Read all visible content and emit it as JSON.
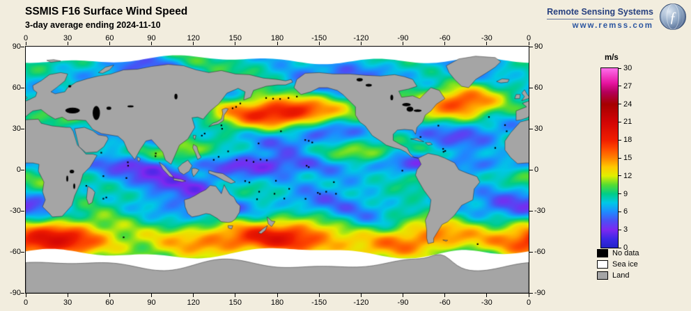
{
  "header": {
    "title": "SSMIS F16 Surface Wind Speed",
    "subtitle": "3-day average ending 2024-11-10"
  },
  "branding": {
    "name": "Remote Sensing Systems",
    "url": "www.remss.com"
  },
  "axes": {
    "lon_ticks": [
      "0",
      "30",
      "60",
      "90",
      "120",
      "150",
      "180",
      "-150",
      "-120",
      "-90",
      "-60",
      "-30",
      "0"
    ],
    "lat_ticks": [
      "90",
      "60",
      "30",
      "0",
      "-30",
      "-60",
      "-90"
    ]
  },
  "colorbar": {
    "label": "m/s",
    "min": 0,
    "max": 30,
    "ticks": [
      "30",
      "27",
      "24",
      "21",
      "18",
      "15",
      "12",
      "9",
      "6",
      "3",
      "0"
    ],
    "stops": [
      {
        "v": 0,
        "c": "#2323c8"
      },
      {
        "v": 1.5,
        "c": "#3c28e6"
      },
      {
        "v": 3,
        "c": "#7d28f0"
      },
      {
        "v": 4.5,
        "c": "#4b50f5"
      },
      {
        "v": 6,
        "c": "#1e8cff"
      },
      {
        "v": 7.5,
        "c": "#00c8e6"
      },
      {
        "v": 9,
        "c": "#00cd87"
      },
      {
        "v": 10.5,
        "c": "#55dc32"
      },
      {
        "v": 12,
        "c": "#e1ef00"
      },
      {
        "v": 13.5,
        "c": "#ffc800"
      },
      {
        "v": 15,
        "c": "#ff8200"
      },
      {
        "v": 16.5,
        "c": "#ff4b00"
      },
      {
        "v": 18,
        "c": "#f01e00"
      },
      {
        "v": 21,
        "c": "#d20505"
      },
      {
        "v": 24,
        "c": "#a50000"
      },
      {
        "v": 26,
        "c": "#b4005a"
      },
      {
        "v": 27.5,
        "c": "#e614a0"
      },
      {
        "v": 30,
        "c": "#ff6eeb"
      }
    ]
  },
  "legend": {
    "items": [
      {
        "label": "No data",
        "color": "#000000"
      },
      {
        "label": "Sea ice",
        "color": "#ffffff"
      },
      {
        "label": "Land",
        "color": "#a5a5a5"
      }
    ]
  },
  "colors": {
    "background": "#f2edde",
    "land": "#a5a5a5",
    "sea_ice": "#ffffff",
    "no_data": "#000000",
    "brand_text": "#27407f",
    "brand_url": "#2c56a0"
  },
  "chart_data": {
    "type": "heatmap",
    "title": "SSMIS F16 Surface Wind Speed",
    "subtitle": "3-day average ending 2024-11-10",
    "variable": "ocean surface wind speed",
    "units": "m/s",
    "projection": "equirectangular world map, longitude 0 at left edge increasing eastward through 180 (center) back to 0 at right edge; latitude 90 (top) to -90 (bottom)",
    "x": {
      "label": "longitude",
      "range_deg": [
        0,
        360
      ],
      "tick_labels": [
        "0",
        "30",
        "60",
        "90",
        "120",
        "150",
        "180",
        "-150",
        "-120",
        "-90",
        "-60",
        "-30",
        "0"
      ]
    },
    "y": {
      "label": "latitude",
      "range_deg": [
        90,
        -90
      ],
      "tick_labels": [
        "90",
        "60",
        "30",
        "0",
        "-30",
        "-60",
        "-90"
      ]
    },
    "colorbar": {
      "label": "m/s",
      "range": [
        0,
        30
      ],
      "ticks": [
        0,
        3,
        6,
        9,
        12,
        15,
        18,
        21,
        24,
        27,
        30
      ],
      "scale_colors_bottom_to_top": [
        "blue",
        "violet",
        "blue",
        "cyan",
        "green",
        "yellow",
        "orange",
        "red",
        "dark red",
        "magenta",
        "pink"
      ]
    },
    "classes": [
      "No data (black)",
      "Sea ice (white)",
      "Land (gray)"
    ],
    "observed_features": [
      "Circumpolar band of high winds (15-25 m/s, orange to red) over the Southern Ocean near 45-60S",
      "Large storm region with 18-25 m/s winds (red / dark red) in the central and western North Pacific near 35-50N",
      "High winds (15-22 m/s) in the North Atlantic between Canada, Greenland and Iceland",
      "Very calm winds (2-5 m/s, purple and blue) in the western Pacific warm pool, around Indonesia and in the eastern Indian Ocean",
      "Moderate trade winds (6-11 m/s, green to yellow) across most tropical and subtropical oceans",
      "White sea ice fringes Antarctica and the Arctic; land is gray; black pixels mark no-data areas such as lakes, coasts and small islands"
    ]
  }
}
